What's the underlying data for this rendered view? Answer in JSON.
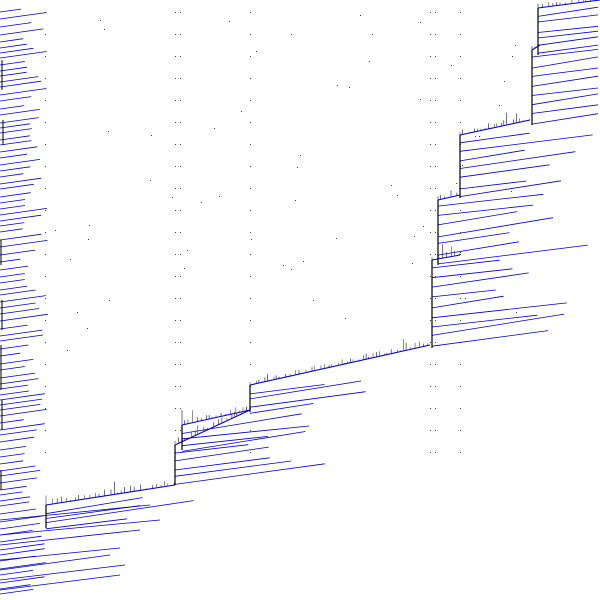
{
  "view": {
    "background_color": "#ffffff",
    "trace_color": "#0000cc",
    "stem_color": "#000000",
    "tick_color": "#444444"
  }
}
